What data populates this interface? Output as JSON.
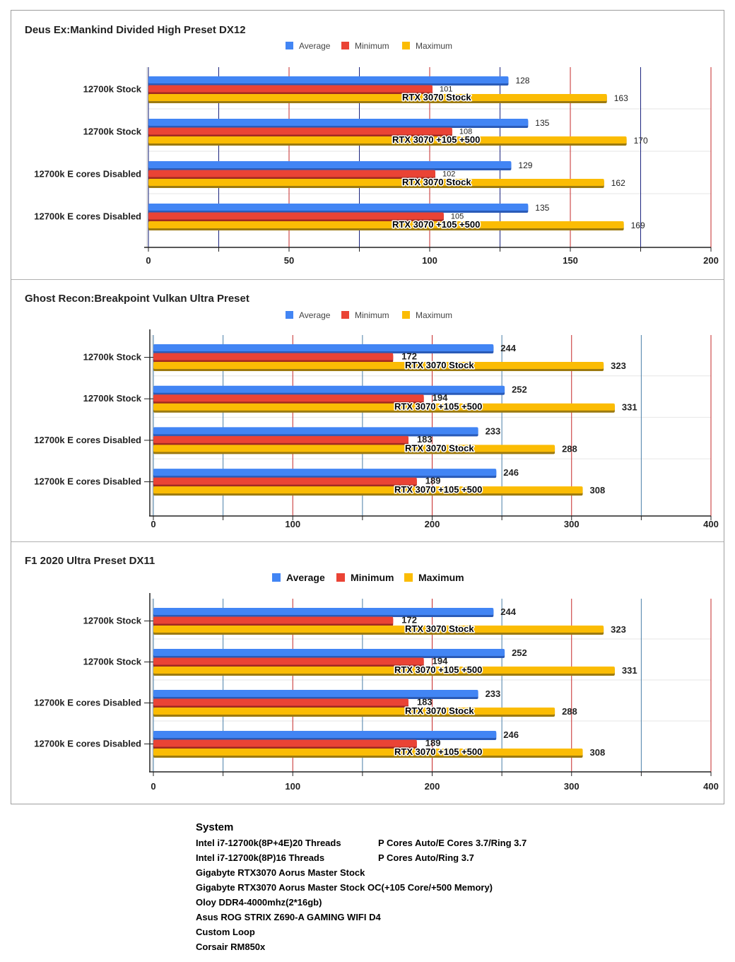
{
  "colors": {
    "average": "#4285f4",
    "average_dark": "#2a5bb8",
    "minimum": "#ea4335",
    "minimum_dark": "#a02a20",
    "maximum": "#fbbc04",
    "maximum_dark": "#9c7a10",
    "grid_a_chart1": "#1a237e",
    "grid_a_other": "#4a7fa8",
    "grid_b": "#c62828"
  },
  "chart_data": [
    {
      "type": "bar",
      "orientation": "horizontal",
      "title": "Deus Ex:Mankind Divided High Preset DX12",
      "legend": [
        "Average",
        "Minimum",
        "Maximum"
      ],
      "legend_position": "top-center",
      "categories": [
        "12700k Stock",
        "12700k Stock",
        "12700k E cores Disabled",
        "12700k E cores Disabled"
      ],
      "annotations": [
        "RTX 3070 Stock",
        "RTX 3070 +105 +500",
        "RTX 3070 Stock",
        "RTX 3070 +105 +500"
      ],
      "series": [
        {
          "name": "Average",
          "values": [
            128,
            135,
            129,
            135
          ]
        },
        {
          "name": "Minimum",
          "values": [
            101,
            108,
            102,
            105
          ]
        },
        {
          "name": "Maximum",
          "values": [
            163,
            170,
            162,
            169
          ]
        }
      ],
      "xlim": [
        0,
        200
      ],
      "xticks": [
        0,
        50,
        100,
        150,
        200
      ],
      "xlabel": "",
      "ylabel": "",
      "grid": true
    },
    {
      "type": "bar",
      "orientation": "horizontal",
      "title": "Ghost Recon:Breakpoint Vulkan Ultra Preset",
      "legend": [
        "Average",
        "Minimum",
        "Maximum"
      ],
      "legend_position": "top-center",
      "categories": [
        "12700k Stock",
        "12700k Stock",
        "12700k E cores Disabled",
        "12700k E cores Disabled"
      ],
      "annotations": [
        "RTX 3070 Stock",
        "RTX 3070 +105 +500",
        "RTX 3070 Stock",
        "RTX 3070 +105 +500"
      ],
      "series": [
        {
          "name": "Average",
          "values": [
            244,
            252,
            233,
            246
          ]
        },
        {
          "name": "Minimum",
          "values": [
            172,
            194,
            183,
            189
          ]
        },
        {
          "name": "Maximum",
          "values": [
            323,
            331,
            288,
            308
          ]
        }
      ],
      "xlim": [
        0,
        400
      ],
      "xticks": [
        0,
        100,
        200,
        300,
        400
      ],
      "xlabel": "",
      "ylabel": "",
      "grid": true
    },
    {
      "type": "bar",
      "orientation": "horizontal",
      "title": "F1 2020 Ultra Preset DX11",
      "legend": [
        "Average",
        "Minimum",
        "Maximum"
      ],
      "legend_position": "top-center",
      "categories": [
        "12700k Stock",
        "12700k Stock",
        "12700k E cores Disabled",
        "12700k E cores Disabled"
      ],
      "annotations": [
        "RTX 3070 Stock",
        "RTX 3070 +105 +500",
        "RTX 3070 Stock",
        "RTX 3070 +105 +500"
      ],
      "series": [
        {
          "name": "Average",
          "values": [
            244,
            252,
            233,
            246
          ]
        },
        {
          "name": "Minimum",
          "values": [
            172,
            194,
            183,
            189
          ]
        },
        {
          "name": "Maximum",
          "values": [
            323,
            331,
            288,
            308
          ]
        }
      ],
      "xlim": [
        0,
        400
      ],
      "xticks": [
        0,
        100,
        200,
        300,
        400
      ],
      "xlabel": "",
      "ylabel": "",
      "grid": true
    }
  ],
  "system": {
    "title": "System",
    "rows": [
      {
        "left": "Intel i7-12700k(8P+4E)20 Threads",
        "right": "P Cores Auto/E Cores 3.7/Ring 3.7"
      },
      {
        "left": "Intel i7-12700k(8P)16 Threads",
        "right": "P Cores Auto/Ring 3.7"
      },
      {
        "left": "Gigabyte RTX3070 Aorus Master Stock",
        "right": ""
      },
      {
        "left": "Gigabyte RTX3070 Aorus Master Stock OC(+105 Core/+500 Memory)",
        "right": ""
      },
      {
        "left": "Oloy DDR4-4000mhz(2*16gb)",
        "right": ""
      },
      {
        "left": "Asus ROG STRIX Z690-A GAMING WIFI D4",
        "right": ""
      },
      {
        "left": "Custom Loop",
        "right": ""
      },
      {
        "left": "Corsair RM850x",
        "right": ""
      }
    ]
  }
}
